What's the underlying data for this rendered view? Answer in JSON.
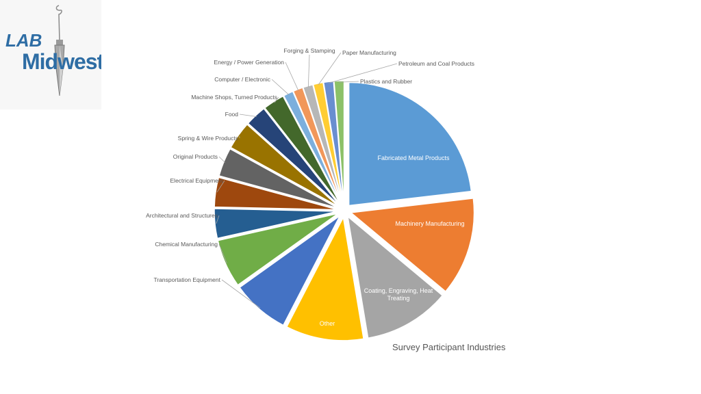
{
  "logo": {
    "line1": "LAB",
    "line2": "Midwest"
  },
  "caption": "Survey Participant Industries",
  "chart_data": {
    "type": "pie",
    "title": "",
    "slices": [
      {
        "label": "Fabricated Metal Products",
        "value": 21.5,
        "color": "#5B9BD5",
        "label_pos": "inside"
      },
      {
        "label": "Machinery Manufacturing",
        "value": 12.0,
        "color": "#ED7D31",
        "label_pos": "inside"
      },
      {
        "label": "Coating, Engraving, Heat Treating",
        "value": 10.5,
        "color": "#A5A5A5",
        "label_pos": "inside"
      },
      {
        "label": "Other",
        "value": 9.5,
        "color": "#FFC000",
        "label_pos": "inside"
      },
      {
        "label": "Transportation Equipment",
        "value": 7.0,
        "color": "#4472C4",
        "label_pos": "outside"
      },
      {
        "label": "Chemical Manufacturing",
        "value": 5.9,
        "color": "#70AD47",
        "label_pos": "outside"
      },
      {
        "label": "Architectural and Structures",
        "value": 3.6,
        "color": "#255E91",
        "label_pos": "outside"
      },
      {
        "label": "Electrical Equipment",
        "value": 3.6,
        "color": "#9E480E",
        "label_pos": "outside"
      },
      {
        "label": "Original Products",
        "value": 3.5,
        "color": "#636363",
        "label_pos": "outside"
      },
      {
        "label": "Spring & Wire Products",
        "value": 3.4,
        "color": "#997300",
        "label_pos": "outside"
      },
      {
        "label": "Food",
        "value": 2.6,
        "color": "#264478",
        "label_pos": "outside"
      },
      {
        "label": "Machine Shops, Turned Products",
        "value": 2.6,
        "color": "#43682B",
        "label_pos": "outside"
      },
      {
        "label": "Computer / Electronic",
        "value": 1.2,
        "color": "#7CAFDD",
        "label_pos": "outside"
      },
      {
        "label": "Energy / Power Generation",
        "value": 1.2,
        "color": "#F1975A",
        "label_pos": "outside"
      },
      {
        "label": "Forging & Stamping",
        "value": 1.2,
        "color": "#B7B7B7",
        "label_pos": "outside"
      },
      {
        "label": "Paper Manufacturing",
        "value": 1.2,
        "color": "#FFCD33",
        "label_pos": "outside"
      },
      {
        "label": "Petroleum and Coal Products",
        "value": 1.2,
        "color": "#698ED0",
        "label_pos": "outside"
      },
      {
        "label": "Plastics and Rubber",
        "value": 1.2,
        "color": "#8CC168",
        "label_pos": "outside"
      }
    ],
    "legend": "none",
    "label_color_inside": "#ffffff",
    "label_color_outside": "#595959"
  }
}
